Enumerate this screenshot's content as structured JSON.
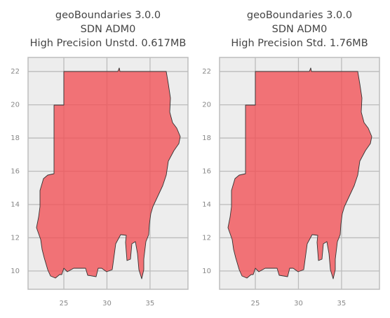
{
  "chart_data": [
    {
      "type": "map",
      "title": [
        "geoBoundaries 3.0.0",
        "SDN ADM0",
        "High Precision Unstd. 0.617MB"
      ],
      "xlim": [
        20.85,
        39.4
      ],
      "ylim": [
        8.9,
        22.85
      ],
      "xticks": [
        25,
        30,
        35
      ],
      "yticks": [
        10,
        12,
        14,
        16,
        18,
        20,
        22
      ],
      "grid": true
    },
    {
      "type": "map",
      "title": [
        "geoBoundaries 3.0.0",
        "SDN ADM0",
        "High Precision Std. 1.76MB"
      ],
      "xlim": [
        20.85,
        39.4
      ],
      "ylim": [
        8.9,
        22.85
      ],
      "xticks": [
        25,
        30,
        35
      ],
      "yticks": [
        10,
        12,
        14,
        16,
        18,
        20,
        22
      ],
      "grid": true
    }
  ]
}
